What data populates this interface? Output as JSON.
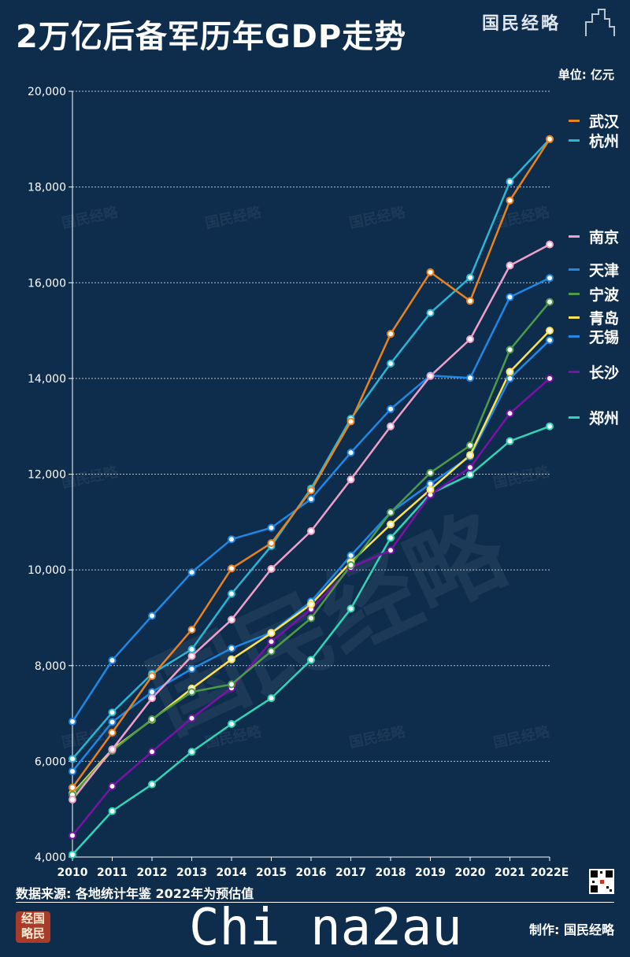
{
  "header": {
    "title": "2万亿后备军历年GDP走势",
    "brand": "国民经略",
    "unit": "单位: 亿元"
  },
  "footer": {
    "source": "数据来源: 各地统计年鉴  2022年为预估值",
    "corner_logo": "经国略民",
    "watermark_text": "Chi na2au",
    "credit": "制作: 国民经略"
  },
  "chart_data": {
    "type": "line",
    "x": [
      "2010",
      "2011",
      "2012",
      "2013",
      "2014",
      "2015",
      "2016",
      "2017",
      "2018",
      "2019",
      "2020",
      "2021",
      "2022E"
    ],
    "ylim": [
      4000,
      20000
    ],
    "yticks": [
      4000,
      6000,
      8000,
      10000,
      12000,
      14000,
      16000,
      18000,
      20000
    ],
    "ytick_labels": [
      "4,000",
      "6,000",
      "8,000",
      "10,000",
      "12,000",
      "14,000",
      "16,000",
      "18,000",
      "20,000"
    ],
    "grid": true,
    "legend_position": "right",
    "series": [
      {
        "name": "武汉",
        "color": "#e8821e",
        "values": [
          5450,
          6600,
          7780,
          8750,
          10030,
          10560,
          11660,
          13100,
          14930,
          16220,
          15620,
          17720,
          19000
        ]
      },
      {
        "name": "杭州",
        "color": "#29b6d4",
        "values": [
          6050,
          7020,
          7830,
          8340,
          9500,
          10500,
          11700,
          13160,
          14310,
          15370,
          16110,
          18110,
          19000
        ]
      },
      {
        "name": "南京",
        "color": "#f0a0c8",
        "values": [
          5200,
          6250,
          7320,
          8200,
          8960,
          10020,
          10810,
          11890,
          13000,
          14050,
          14820,
          16360,
          16800
        ]
      },
      {
        "name": "天津",
        "color": "#1e88e5",
        "values": [
          6830,
          8110,
          9040,
          9950,
          10640,
          10880,
          11480,
          12450,
          13360,
          14060,
          14010,
          15700,
          16100
        ]
      },
      {
        "name": "宁波",
        "color": "#4d9a48",
        "values": [
          5300,
          6220,
          6880,
          7450,
          7610,
          8300,
          8990,
          10100,
          11200,
          12030,
          12600,
          14600,
          15600
        ]
      },
      {
        "name": "青岛",
        "color": "#fde24f",
        "values": [
          5330,
          6250,
          6870,
          7520,
          8130,
          8680,
          9280,
          10160,
          10950,
          11680,
          12400,
          14140,
          15000
        ]
      },
      {
        "name": "无锡",
        "color": "#1e88e5",
        "values": [
          5790,
          6820,
          7450,
          7930,
          8360,
          8690,
          9340,
          10300,
          11200,
          11800,
          12370,
          14000,
          14800
        ]
      },
      {
        "name": "长沙",
        "color": "#7a12a8",
        "values": [
          4450,
          5480,
          6200,
          6900,
          7530,
          8500,
          9180,
          10050,
          10410,
          11570,
          12140,
          13270,
          14000
        ]
      },
      {
        "name": "郑州",
        "color": "#2fd6b6",
        "values": [
          4050,
          4960,
          5520,
          6200,
          6780,
          7320,
          8120,
          9190,
          10670,
          11590,
          11990,
          12690,
          13000
        ]
      }
    ]
  }
}
